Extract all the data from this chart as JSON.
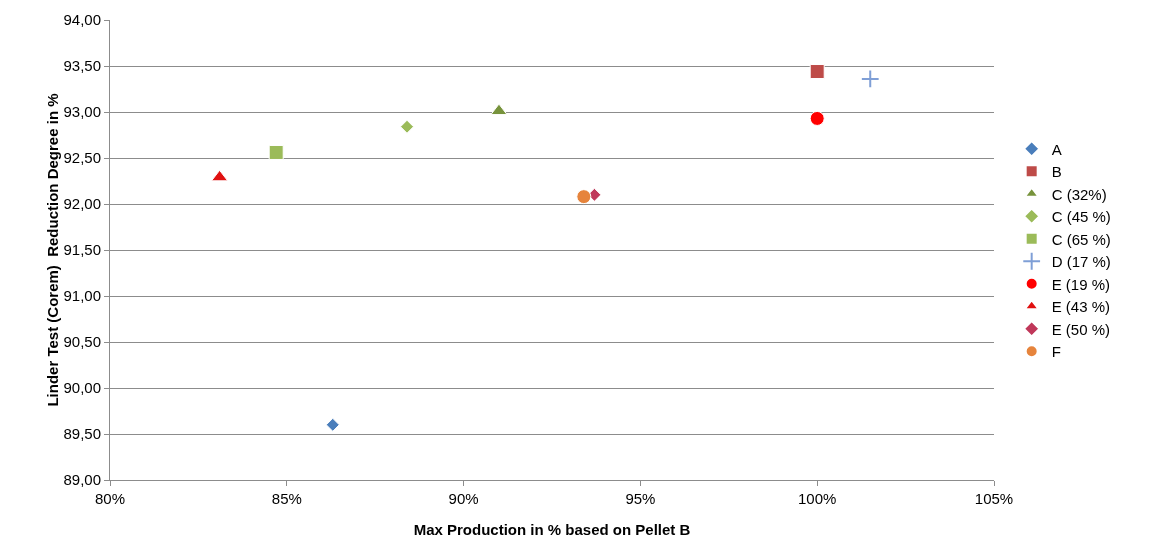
{
  "chart_data": {
    "type": "scatter",
    "xlabel": "Max Production in % based on Pellet B",
    "ylabel": "Linder Test (Corem)  Reduction Degree in %",
    "xlim": [
      80,
      105
    ],
    "xticks": [
      {
        "value": 80,
        "label": "80%"
      },
      {
        "value": 85,
        "label": "85%"
      },
      {
        "value": 90,
        "label": "90%"
      },
      {
        "value": 95,
        "label": "95%"
      },
      {
        "value": 100,
        "label": "100%"
      },
      {
        "value": 105,
        "label": "105%"
      }
    ],
    "ylim": [
      89,
      94
    ],
    "yticks": [
      {
        "value": 89,
        "label": "89,00"
      },
      {
        "value": 89.5,
        "label": "89,50"
      },
      {
        "value": 90,
        "label": "90,00"
      },
      {
        "value": 90.5,
        "label": "90,50"
      },
      {
        "value": 91,
        "label": "91,00"
      },
      {
        "value": 91.5,
        "label": "91,50"
      },
      {
        "value": 92,
        "label": "92,00"
      },
      {
        "value": 92.5,
        "label": "92,50"
      },
      {
        "value": 93,
        "label": "93,00"
      },
      {
        "value": 93.5,
        "label": "93,50"
      },
      {
        "value": 94,
        "label": "94,00"
      }
    ],
    "grid": "y",
    "legend": "right",
    "series": [
      {
        "name": "A",
        "color": "#4a7ebb",
        "marker": "diamond",
        "x": [
          86.3
        ],
        "values": [
          89.6
        ]
      },
      {
        "name": "B",
        "color": "#be4b48",
        "marker": "square",
        "x": [
          100
        ],
        "values": [
          93.44
        ]
      },
      {
        "name": "C (32%)",
        "color": "#77933c",
        "marker": "triangle",
        "x": [
          91
        ],
        "values": [
          93.01
        ]
      },
      {
        "name": "C (45 %)",
        "color": "#9bbb59",
        "marker": "diamond",
        "x": [
          88.4
        ],
        "values": [
          92.84
        ]
      },
      {
        "name": "C (65 %)",
        "color": "#9bbb59",
        "marker": "square",
        "x": [
          84.7
        ],
        "values": [
          92.56
        ]
      },
      {
        "name": "D (17 %)",
        "color": "#7f9fd6",
        "marker": "cross",
        "x": [
          101.5
        ],
        "values": [
          93.36
        ]
      },
      {
        "name": "E (19 %)",
        "color": "#ff0000",
        "marker": "circle",
        "x": [
          100
        ],
        "values": [
          92.93
        ]
      },
      {
        "name": "E (43 %)",
        "color": "#e01010",
        "marker": "triangle",
        "x": [
          83.1
        ],
        "values": [
          92.29
        ]
      },
      {
        "name": "E (50 %)",
        "color": "#c0385a",
        "marker": "diamond",
        "x": [
          93.7
        ],
        "values": [
          92.1
        ]
      },
      {
        "name": "F",
        "color": "#e6843c",
        "marker": "circle",
        "x": [
          93.4
        ],
        "values": [
          92.08
        ]
      }
    ]
  }
}
